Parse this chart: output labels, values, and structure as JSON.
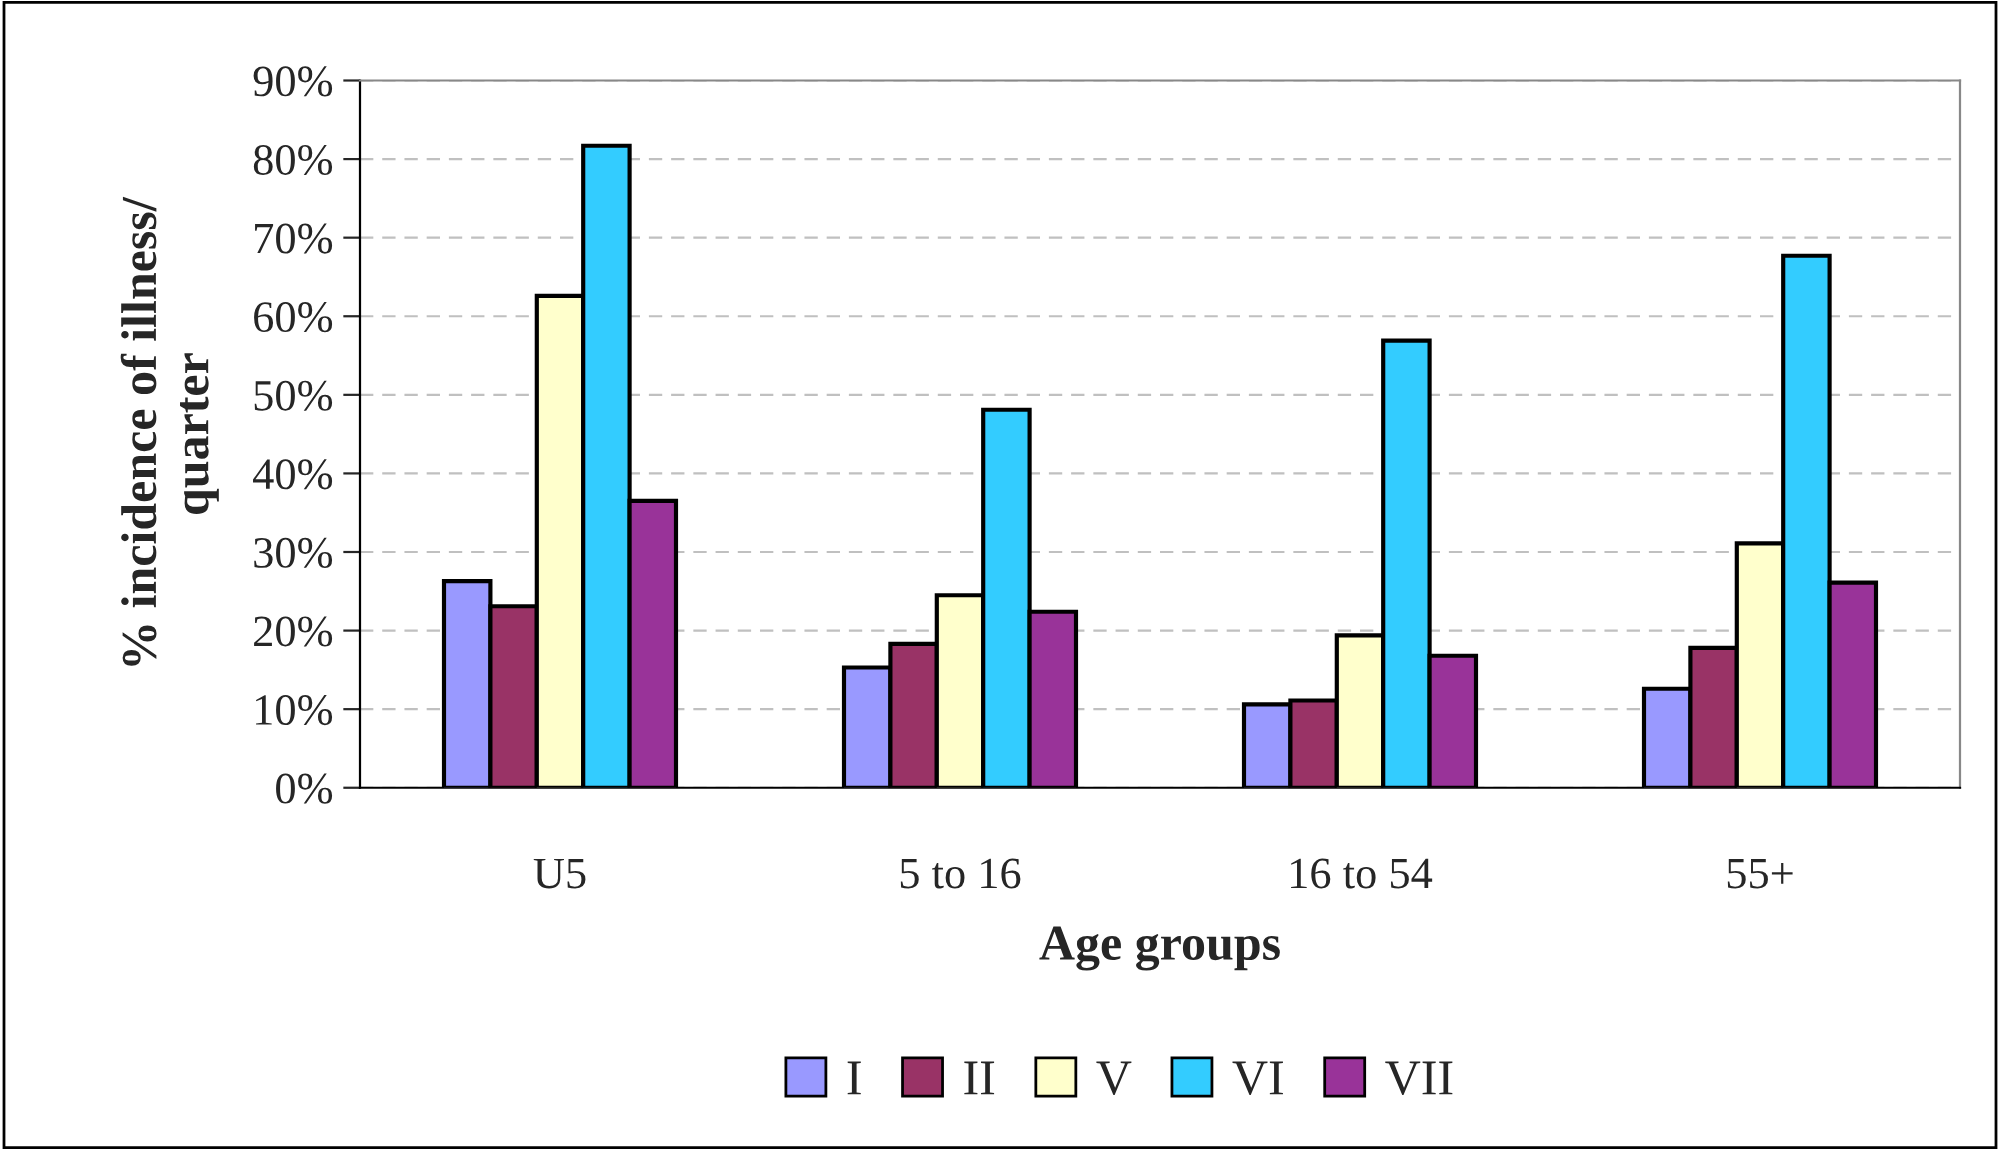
{
  "chart_data": {
    "type": "bar",
    "xlabel": "Age groups",
    "ylabel": "% incidence of illness/\nquarter",
    "categories": [
      "U5",
      "5 to 16",
      "16 to 54",
      "55+"
    ],
    "series": [
      {
        "name": "I",
        "color": "#9999ff",
        "values": [
          26.3,
          15.3,
          10.6,
          12.6
        ]
      },
      {
        "name": "II",
        "color": "#993366",
        "values": [
          23.1,
          18.3,
          11.1,
          17.8
        ]
      },
      {
        "name": "V",
        "color": "#ffffcc",
        "values": [
          62.6,
          24.5,
          19.4,
          31.1
        ]
      },
      {
        "name": "VI",
        "color": "#33ccff",
        "values": [
          81.7,
          48.1,
          56.9,
          67.7
        ]
      },
      {
        "name": "VII",
        "color": "#993399",
        "values": [
          36.5,
          22.4,
          16.8,
          26.1
        ]
      }
    ],
    "ylim": [
      0,
      90
    ],
    "yticks": [
      {
        "value": 0,
        "label": "0%"
      },
      {
        "value": 10,
        "label": "10%"
      },
      {
        "value": 20,
        "label": "20%"
      },
      {
        "value": 30,
        "label": "30%"
      },
      {
        "value": 40,
        "label": "40%"
      },
      {
        "value": 50,
        "label": "50%"
      },
      {
        "value": 60,
        "label": "60%"
      },
      {
        "value": 70,
        "label": "70%"
      },
      {
        "value": 80,
        "label": "80%"
      },
      {
        "value": 90,
        "label": "90%"
      }
    ],
    "grid": "y",
    "legend": "bottom"
  }
}
